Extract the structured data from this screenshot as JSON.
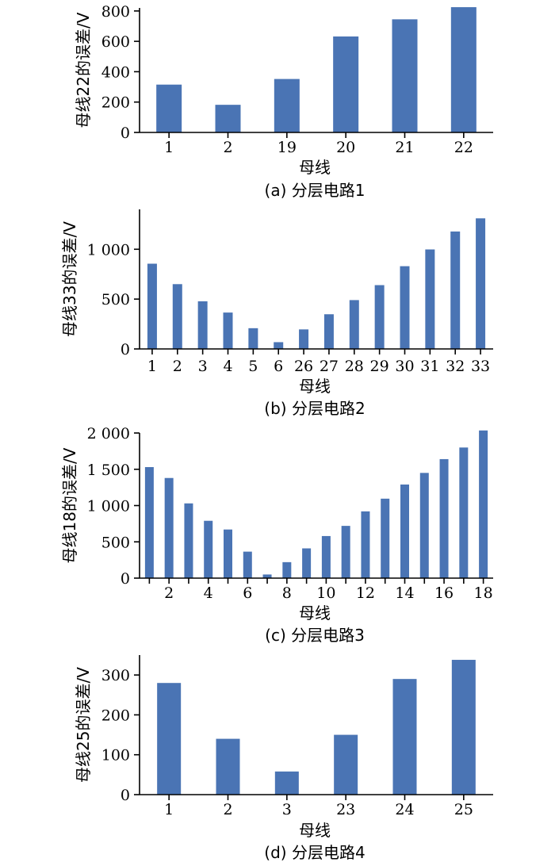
{
  "bar_color": "#4a74b4",
  "chart_data": [
    {
      "type": "bar",
      "caption": "(a)  分层电路1",
      "xlabel": "母线",
      "ylabel": "母线22的误差/V",
      "ylim": [
        0,
        820
      ],
      "yticks": [
        0,
        200,
        400,
        600,
        800
      ],
      "ytick_labels": [
        "0",
        "200",
        "400",
        "600",
        "800"
      ],
      "categories": [
        "1",
        "2",
        "19",
        "20",
        "21",
        "22"
      ],
      "xtick_labels": [
        "1",
        "2",
        "19",
        "20",
        "21",
        "22"
      ],
      "values": [
        315,
        182,
        352,
        632,
        745,
        825
      ]
    },
    {
      "type": "bar",
      "caption": "(b)  分层电路2",
      "xlabel": "母线",
      "ylabel": "母线33的误差/V",
      "ylim": [
        0,
        1400
      ],
      "yticks": [
        0,
        500,
        1000
      ],
      "ytick_labels": [
        "0",
        "500",
        "1 000"
      ],
      "categories": [
        "1",
        "2",
        "3",
        "4",
        "5",
        "6",
        "26",
        "27",
        "28",
        "29",
        "30",
        "31",
        "32",
        "33"
      ],
      "xtick_labels": [
        "1",
        "2",
        "3",
        "4",
        "5",
        "6",
        "26",
        "27",
        "28",
        "29",
        "30",
        "31",
        "32",
        "33"
      ],
      "values": [
        855,
        650,
        478,
        365,
        208,
        68,
        196,
        348,
        490,
        640,
        830,
        998,
        1178,
        1310
      ]
    },
    {
      "type": "bar",
      "caption": "(c)  分层电路3",
      "xlabel": "母线",
      "ylabel": "母线18的误差/V",
      "ylim": [
        0,
        2000
      ],
      "yticks": [
        0,
        500,
        1000,
        1500,
        2000
      ],
      "ytick_labels": [
        "0",
        "500",
        "1 000",
        "1 500",
        "2 000"
      ],
      "categories": [
        "1",
        "2",
        "3",
        "4",
        "5",
        "6",
        "7",
        "8",
        "9",
        "10",
        "11",
        "12",
        "13",
        "14",
        "15",
        "16",
        "17",
        "18"
      ],
      "xtick_labels": [
        "",
        "2",
        "",
        "4",
        "",
        "6",
        "",
        "8",
        "",
        "10",
        "",
        "12",
        "",
        "14",
        "",
        "16",
        "",
        "18"
      ],
      "values": [
        1530,
        1380,
        1030,
        790,
        670,
        365,
        50,
        220,
        410,
        580,
        720,
        920,
        1095,
        1290,
        1450,
        1640,
        1800,
        2035
      ]
    },
    {
      "type": "bar",
      "caption": "(d)  分层电路4",
      "xlabel": "母线",
      "ylabel": "母线25的误差/V",
      "ylim": [
        0,
        350
      ],
      "yticks": [
        0,
        100,
        200,
        300
      ],
      "ytick_labels": [
        "0",
        "100",
        "200",
        "300"
      ],
      "categories": [
        "1",
        "2",
        "3",
        "23",
        "24",
        "25"
      ],
      "xtick_labels": [
        "1",
        "2",
        "3",
        "23",
        "24",
        "25"
      ],
      "values": [
        280,
        140,
        58,
        150,
        290,
        338
      ]
    }
  ]
}
